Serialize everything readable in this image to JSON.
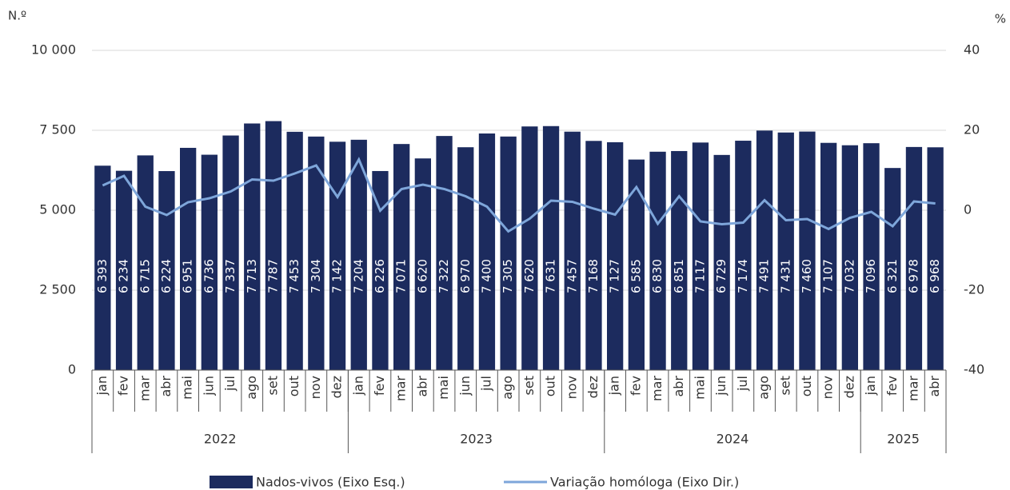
{
  "chart_data": {
    "type": "bar-line",
    "y_axis_label": "N.º",
    "y2_axis_label": "%",
    "categories": [
      "jan",
      "fev",
      "mar",
      "abr",
      "mai",
      "jun",
      "jul",
      "ago",
      "set",
      "out",
      "nov",
      "dez",
      "jan",
      "fev",
      "mar",
      "abr",
      "mai",
      "jun",
      "jul",
      "ago",
      "set",
      "out",
      "nov",
      "dez",
      "jan",
      "fev",
      "mar",
      "abr",
      "mai",
      "jun",
      "jul",
      "ago",
      "set",
      "out",
      "nov",
      "dez",
      "jan",
      "fev",
      "mar",
      "abr"
    ],
    "category_groups": [
      {
        "label": "2022",
        "span": 12
      },
      {
        "label": "2023",
        "span": 12
      },
      {
        "label": "2024",
        "span": 12
      },
      {
        "label": "2025",
        "span": 4
      }
    ],
    "series": [
      {
        "name": "Nados-vivos (Eixo Esq.)",
        "type": "bar",
        "color": "#1c2b5e",
        "values": [
          6393,
          6234,
          6715,
          6224,
          6951,
          6736,
          7337,
          7713,
          7787,
          7453,
          7304,
          7142,
          7204,
          6226,
          7071,
          6620,
          7322,
          6970,
          7400,
          7305,
          7620,
          7631,
          7457,
          7168,
          7127,
          6585,
          6830,
          6851,
          7117,
          6729,
          7174,
          7491,
          7431,
          7460,
          7107,
          7032,
          7096,
          6321,
          6978,
          6968
        ],
        "value_labels": [
          "6 393",
          "6 234",
          "6 715",
          "6 224",
          "6 951",
          "6 736",
          "7 337",
          "7 713",
          "7 787",
          "7 453",
          "7 304",
          "7 142",
          "7 204",
          "6 226",
          "7 071",
          "6 620",
          "7 322",
          "6 970",
          "7 400",
          "7 305",
          "7 620",
          "7 631",
          "7 457",
          "7 168",
          "7 127",
          "6 585",
          "6 830",
          "6 851",
          "7 117",
          "6 729",
          "7 174",
          "7 491",
          "7 431",
          "7 460",
          "7 107",
          "7 032",
          "7 096",
          "6 321",
          "6 978",
          "6 968"
        ]
      },
      {
        "name": "Variação homóloga (Eixo Dir.)",
        "type": "line",
        "axis": "y2",
        "color": "#7ea6da",
        "values": [
          6.2,
          8.6,
          0.9,
          -1.2,
          2.0,
          3.0,
          4.7,
          7.7,
          7.4,
          9.2,
          11.2,
          3.3,
          12.7,
          -0.1,
          5.3,
          6.4,
          5.3,
          3.5,
          0.9,
          -5.3,
          -2.1,
          2.4,
          2.1,
          0.4,
          -1.1,
          5.8,
          -3.4,
          3.5,
          -2.8,
          -3.5,
          -3.1,
          2.5,
          -2.5,
          -2.2,
          -4.7,
          -1.9,
          -0.4,
          -4.0,
          2.2,
          1.7
        ]
      }
    ],
    "ylim": [
      0,
      10000
    ],
    "yticks": [
      0,
      {
        "value": 2500,
        "label": "2 500"
      },
      {
        "value": 5000,
        "label": "5 000"
      },
      {
        "value": 7500,
        "label": "7 500"
      },
      {
        "value": 10000,
        "label": "10 000"
      }
    ],
    "y2lim": [
      -40,
      40
    ],
    "y2ticks": [
      -40,
      -20,
      0,
      20,
      40
    ],
    "grid": true
  }
}
